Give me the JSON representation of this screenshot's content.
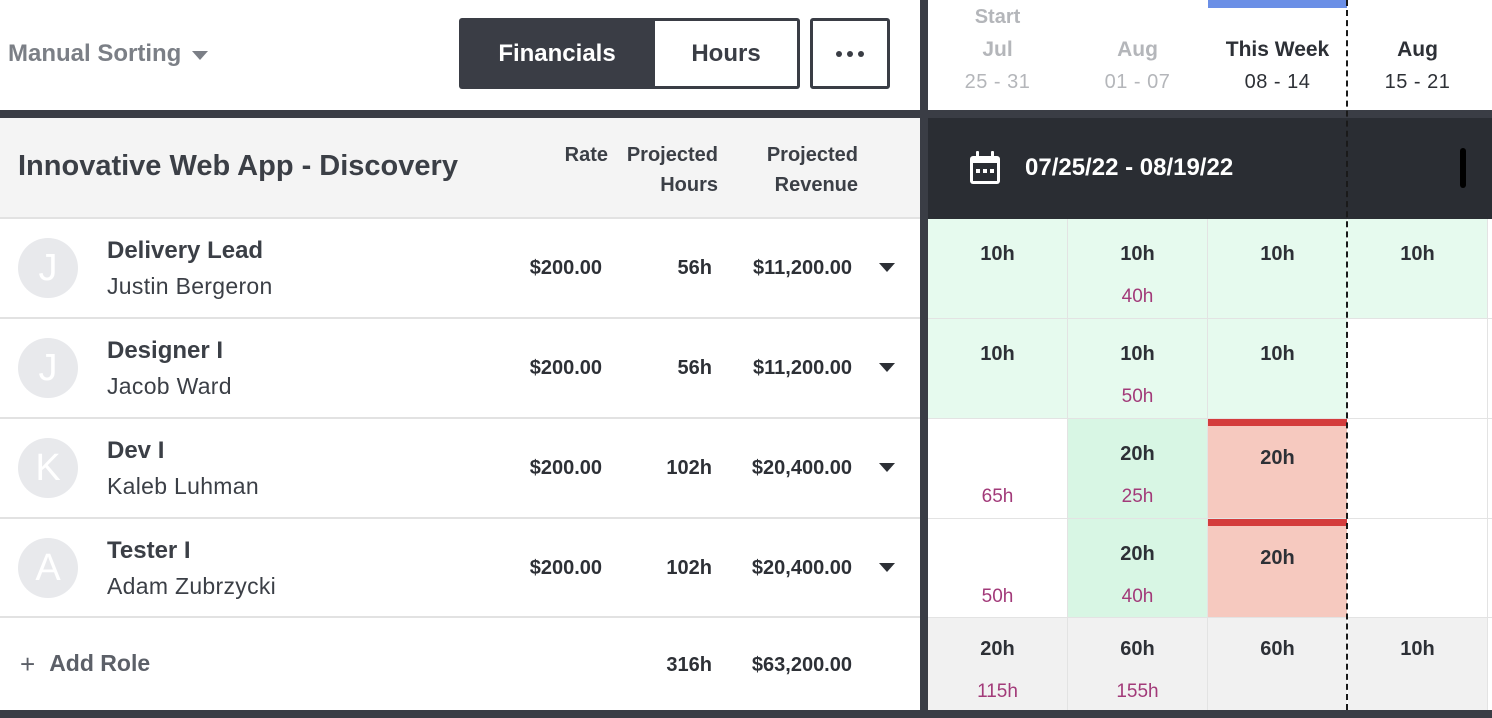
{
  "toolbar": {
    "sorting_label": "Manual Sorting",
    "toggle_financials": "Financials",
    "toggle_hours": "Hours",
    "toggle_active": "Financials"
  },
  "project": {
    "title": "Innovative Web App - Discovery",
    "col_rate": "Rate",
    "col_projected_hours": [
      "Projected",
      "Hours"
    ],
    "col_projected_revenue": [
      "Projected",
      "Revenue"
    ]
  },
  "roles": [
    {
      "initial": "J",
      "role": "Delivery Lead",
      "person": "Justin Bergeron",
      "rate": "$200.00",
      "hours": "56h",
      "revenue": "$11,200.00"
    },
    {
      "initial": "J",
      "role": "Designer I",
      "person": "Jacob Ward",
      "rate": "$200.00",
      "hours": "56h",
      "revenue": "$11,200.00"
    },
    {
      "initial": "K",
      "role": "Dev I",
      "person": "Kaleb Luhman",
      "rate": "$200.00",
      "hours": "102h",
      "revenue": "$20,400.00"
    },
    {
      "initial": "A",
      "role": "Tester I",
      "person": "Adam Zubrzycki",
      "rate": "$200.00",
      "hours": "102h",
      "revenue": "$20,400.00"
    }
  ],
  "totals": {
    "add_role_label": "Add Role",
    "hours": "316h",
    "revenue": "$63,200.00"
  },
  "timeline": {
    "start_label": "Start",
    "weeks": [
      {
        "month": "Jul",
        "range": "25 - 31"
      },
      {
        "month": "Aug",
        "range": "01 - 07"
      },
      {
        "month": "This Week",
        "range": "08 - 14"
      },
      {
        "month": "Aug",
        "range": "15 - 21"
      }
    ],
    "date_range": "07/25/22 - 08/19/22",
    "grid": [
      [
        {
          "h": "10h",
          "cum": ""
        },
        {
          "h": "10h",
          "cum": "40h"
        },
        {
          "h": "10h",
          "cum": ""
        },
        {
          "h": "10h",
          "cum": ""
        }
      ],
      [
        {
          "h": "10h",
          "cum": ""
        },
        {
          "h": "10h",
          "cum": "50h"
        },
        {
          "h": "10h",
          "cum": ""
        },
        {
          "h": "",
          "cum": ""
        }
      ],
      [
        {
          "h": "",
          "cum": "65h"
        },
        {
          "h": "20h",
          "cum": "25h"
        },
        {
          "h": "20h",
          "cum": ""
        },
        {
          "h": "",
          "cum": ""
        }
      ],
      [
        {
          "h": "",
          "cum": "50h"
        },
        {
          "h": "20h",
          "cum": "40h"
        },
        {
          "h": "20h",
          "cum": ""
        },
        {
          "h": "",
          "cum": ""
        }
      ],
      [
        {
          "h": "20h",
          "cum": "115h"
        },
        {
          "h": "60h",
          "cum": "155h"
        },
        {
          "h": "60h",
          "cum": ""
        },
        {
          "h": "10h",
          "cum": ""
        }
      ]
    ]
  },
  "colors": {
    "dark": "#3a3d45",
    "scheduled_green": "#e6faee",
    "over_allocated": "#f6c9bf",
    "over_line": "#d43c3c",
    "current_week": "#6b8fe6",
    "cumulative_text": "#a23a79"
  }
}
